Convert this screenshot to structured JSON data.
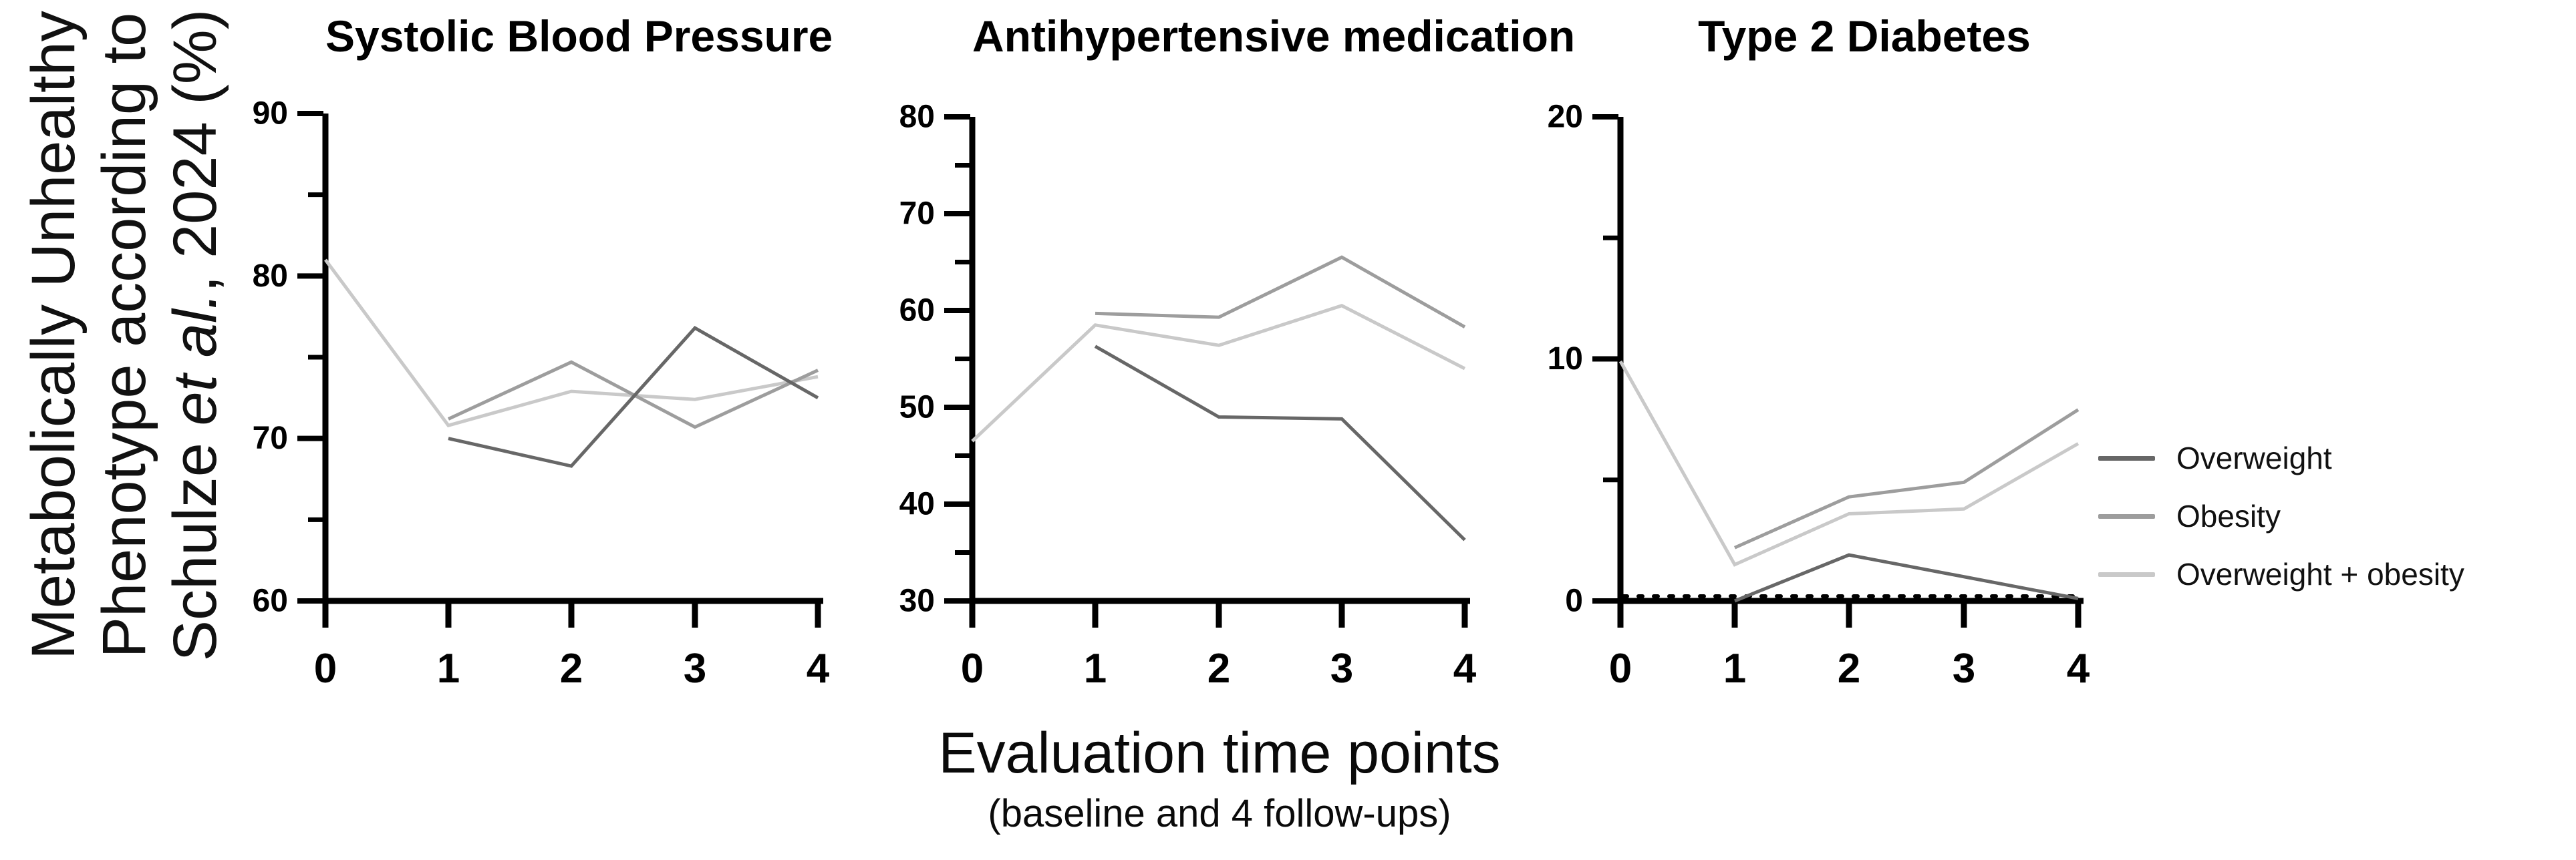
{
  "page": {
    "background": "#ffffff"
  },
  "y_axis_label": {
    "line1": "Metabolically Unhealthy",
    "line2": "Phenotype according to",
    "line3_prefix": "Schulze ",
    "line3_italic": "et al.",
    "line3_suffix": ", 2024 (%)"
  },
  "x_axis_label": {
    "title": "Evaluation time points",
    "subtitle": "(baseline and 4 follow-ups)"
  },
  "legend": {
    "position": "right",
    "items": [
      {
        "label": "Overweight",
        "color": "#676767"
      },
      {
        "label": "Obesity",
        "color": "#9d9d9d"
      },
      {
        "label": "Overweight + obesity",
        "color": "#c9c9c9"
      }
    ]
  },
  "colors": {
    "axis": "#000000",
    "text": "#000000"
  },
  "chart_data": [
    {
      "type": "line",
      "title": "Systolic Blood Pressure",
      "x": [
        0,
        1,
        2,
        3,
        4
      ],
      "xlim": [
        0,
        4
      ],
      "ylim": [
        60,
        90
      ],
      "yticks": [
        60,
        70,
        80,
        90
      ],
      "yticks_minor": [
        65,
        75,
        85
      ],
      "grid": false,
      "series": [
        {
          "name": "Overweight",
          "color": "#676767",
          "values": [
            null,
            70,
            68.3,
            76.8,
            72.5
          ]
        },
        {
          "name": "Obesity",
          "color": "#9d9d9d",
          "values": [
            null,
            71.2,
            74.7,
            70.7,
            74.2
          ]
        },
        {
          "name": "Overweight + obesity",
          "color": "#c9c9c9",
          "values": [
            81,
            70.8,
            72.9,
            72.4,
            73.8
          ]
        }
      ]
    },
    {
      "type": "line",
      "title": "Antihypertensive medication",
      "x": [
        0,
        1,
        2,
        3,
        4
      ],
      "xlim": [
        0,
        4
      ],
      "ylim": [
        30,
        80
      ],
      "yticks": [
        30,
        40,
        50,
        60,
        70,
        80
      ],
      "yticks_minor": [
        35,
        45,
        55,
        65,
        75
      ],
      "grid": false,
      "series": [
        {
          "name": "Overweight",
          "color": "#676767",
          "values": [
            null,
            56.3,
            49,
            48.8,
            36.3
          ]
        },
        {
          "name": "Obesity",
          "color": "#9d9d9d",
          "values": [
            null,
            59.7,
            59.3,
            65.5,
            58.3
          ]
        },
        {
          "name": "Overweight + obesity",
          "color": "#c9c9c9",
          "values": [
            46.5,
            58.5,
            56.4,
            60.5,
            54
          ]
        }
      ]
    },
    {
      "type": "line",
      "title": "Type 2 Diabetes",
      "x": [
        0,
        1,
        2,
        3,
        4
      ],
      "xlim": [
        0,
        4
      ],
      "ylim": [
        0,
        20
      ],
      "yticks": [
        0,
        10,
        20
      ],
      "yticks_minor": [
        5,
        15
      ],
      "grid": false,
      "zero_reference_line": {
        "style": "dotted",
        "color": "#000000",
        "y": 0
      },
      "series": [
        {
          "name": "Overweight",
          "color": "#676767",
          "values": [
            null,
            0,
            1.9,
            1.0,
            0.1
          ]
        },
        {
          "name": "Obesity",
          "color": "#9d9d9d",
          "values": [
            null,
            2.2,
            4.3,
            4.9,
            7.9
          ]
        },
        {
          "name": "Overweight + obesity",
          "color": "#c9c9c9",
          "values": [
            9.9,
            1.5,
            3.6,
            3.8,
            6.5
          ]
        }
      ]
    }
  ]
}
